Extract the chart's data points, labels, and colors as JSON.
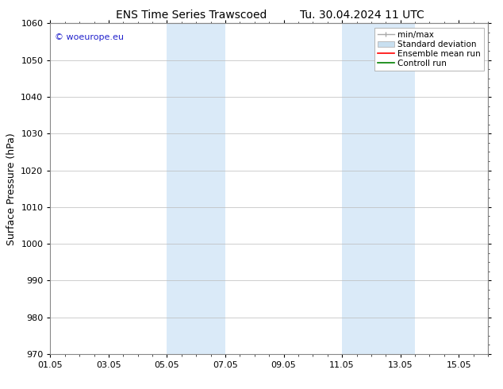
{
  "title_left": "ENS Time Series Trawscoed",
  "title_right": "Tu. 30.04.2024 11 UTC",
  "ylabel": "Surface Pressure (hPa)",
  "ylim": [
    970,
    1060
  ],
  "yticks": [
    970,
    980,
    990,
    1000,
    1010,
    1020,
    1030,
    1040,
    1050,
    1060
  ],
  "xtick_labels": [
    "01.05",
    "03.05",
    "05.05",
    "07.05",
    "09.05",
    "11.05",
    "13.05",
    "15.05"
  ],
  "xtick_positions": [
    0,
    2,
    4,
    6,
    8,
    10,
    12,
    14
  ],
  "xlim": [
    0,
    15
  ],
  "shaded_bands": [
    {
      "x_start": 4.0,
      "x_end": 6.0,
      "color": "#daeaf8"
    },
    {
      "x_start": 10.0,
      "x_end": 12.5,
      "color": "#daeaf8"
    }
  ],
  "watermark_text": "© woeurope.eu",
  "watermark_color": "#2222cc",
  "legend_items": [
    {
      "label": "min/max",
      "color": "#aaaaaa"
    },
    {
      "label": "Standard deviation",
      "color": "#c8dff0"
    },
    {
      "label": "Ensemble mean run",
      "color": "red"
    },
    {
      "label": "Controll run",
      "color": "green"
    }
  ],
  "bg_color": "#ffffff",
  "spine_color": "#888888",
  "grid_color": "#bbbbbb",
  "tick_fontsize": 8,
  "label_fontsize": 9,
  "title_fontsize": 10,
  "legend_fontsize": 7.5
}
